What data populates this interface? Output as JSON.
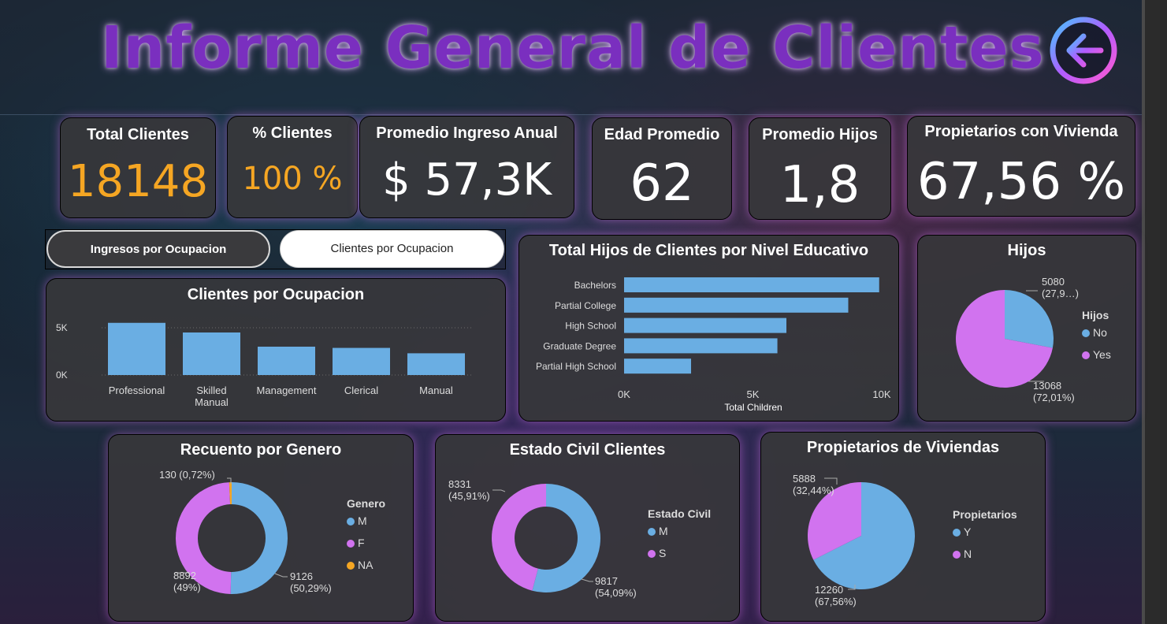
{
  "header": {
    "title": "Informe General de Clientes",
    "back_icon": "arrow-left-icon"
  },
  "kpis": {
    "total_clientes": {
      "label": "Total Clientes",
      "value": "18148"
    },
    "pct_clientes": {
      "label": "% Clientes",
      "value": "100 %"
    },
    "ingreso": {
      "label": "Promedio Ingreso Anual",
      "value": "$ 57,3K"
    },
    "edad": {
      "label": "Edad Promedio",
      "value": "62"
    },
    "hijos": {
      "label": "Promedio Hijos",
      "value": "1,8"
    },
    "propietarios": {
      "label": "Propietarios con Vivienda",
      "value": "67,56 %"
    }
  },
  "toggles": {
    "ingresos": "Ingresos por Ocupacion",
    "clientes": "Clientes por Ocupacion"
  },
  "colors": {
    "blue": "#6aaee3",
    "purple": "#d173ef",
    "orange": "#f5a623",
    "accent_value": "#f5a623"
  },
  "chart_data": [
    {
      "id": "ocupacion",
      "type": "bar",
      "title": "Clientes por Ocupacion",
      "categories": [
        "Professional",
        "Skilled Manual",
        "Management",
        "Clerical",
        "Manual"
      ],
      "category_lines": [
        [
          "Professional"
        ],
        [
          "Skilled",
          "Manual"
        ],
        [
          "Management"
        ],
        [
          "Clerical"
        ],
        [
          "Manual"
        ]
      ],
      "values": [
        5520,
        4500,
        3000,
        2870,
        2300
      ],
      "yticks": [
        "0K",
        "5K"
      ],
      "ylim": [
        0,
        6000
      ],
      "xlabel": "",
      "ylabel": ""
    },
    {
      "id": "educacion",
      "type": "bar",
      "orientation": "horizontal",
      "title": "Total Hijos de Clientes por Nivel Educativo",
      "categories": [
        "Bachelors",
        "Partial College",
        "High School",
        "Graduate Degree",
        "Partial High School"
      ],
      "values": [
        9900,
        8700,
        6300,
        5950,
        2600
      ],
      "xticks": [
        "0K",
        "5K",
        "10K"
      ],
      "xlim": [
        0,
        10000
      ],
      "xlabel": "Total Children",
      "ylabel": ""
    },
    {
      "id": "hijos",
      "type": "pie",
      "title": "Hijos",
      "legend_title": "Hijos",
      "legend_position": "right",
      "slices": [
        {
          "name": "No",
          "value": 5080,
          "label": "5080",
          "pct_label": "(27,9…)"
        },
        {
          "name": "Yes",
          "value": 13068,
          "label": "13068",
          "pct_label": "(72,01%)"
        }
      ]
    },
    {
      "id": "genero",
      "type": "pie",
      "donut": true,
      "title": "Recuento por Genero",
      "legend_title": "Genero",
      "legend_position": "right",
      "slices": [
        {
          "name": "M",
          "value": 9126,
          "label": "9126",
          "pct_label": "(50,29%)"
        },
        {
          "name": "F",
          "value": 8892,
          "label": "8892",
          "pct_label": "(49%)"
        },
        {
          "name": "NA",
          "value": 130,
          "label": "130 (0,72%)",
          "pct_label": ""
        }
      ]
    },
    {
      "id": "civil",
      "type": "pie",
      "donut": true,
      "title": "Estado Civil Clientes",
      "legend_title": "Estado Civil",
      "legend_position": "right",
      "slices": [
        {
          "name": "M",
          "value": 9817,
          "label": "9817",
          "pct_label": "(54,09%)"
        },
        {
          "name": "S",
          "value": 8331,
          "label": "8331",
          "pct_label": "(45,91%)"
        }
      ]
    },
    {
      "id": "viviendas",
      "type": "pie",
      "title": "Propietarios de Viviendas",
      "legend_title": "Propietarios",
      "legend_position": "right",
      "slices": [
        {
          "name": "Y",
          "value": 12260,
          "label": "12260",
          "pct_label": "(67,56%)"
        },
        {
          "name": "N",
          "value": 5888,
          "label": "5888",
          "pct_label": "(32,44%)"
        }
      ]
    }
  ]
}
